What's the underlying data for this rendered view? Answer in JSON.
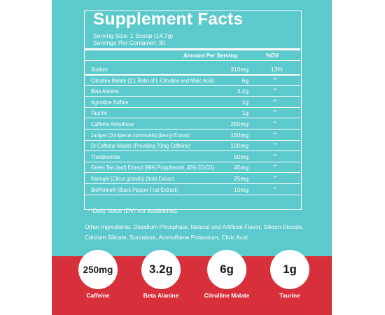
{
  "panel": {
    "title": "Supplement Facts",
    "serving_size": "Serving Size: 1 Scoop (14.7g)",
    "servings_per_container": "Servings Per Container: 30",
    "header_amount": "Amount Per Serving",
    "header_dv": "%DV",
    "rows": [
      {
        "name": "Sodium",
        "amount": "310mg",
        "dv": "13%"
      },
      {
        "name": "Citrulline Malate (2:1 Ratio of L-Citrulline and Malic Acid)",
        "amount": "6g",
        "dv": "**"
      },
      {
        "name": "Beta Alanine",
        "amount": "3.2g",
        "dv": "**"
      },
      {
        "name": "Agmatine Sulfate",
        "amount": "1g",
        "dv": "**"
      },
      {
        "name": "Taurine",
        "amount": "1g",
        "dv": "**"
      },
      {
        "name": "Caffeine Anhydrous",
        "amount": "250mg",
        "dv": "**"
      },
      {
        "name": "Juniper (Juniperus communis) (berry) Extract",
        "amount": "150mg",
        "dv": "**"
      },
      {
        "name": "Di-Caffeine Malate (Providing 70mg Caffeine)",
        "amount": "100mg",
        "dv": "**"
      },
      {
        "name": "Theobromine",
        "amount": "50mg",
        "dv": "**"
      },
      {
        "name": "Green Tea (leaf) Extract (98% Polyphenols, 45% EGCG)",
        "amount": "45mg",
        "dv": "**"
      },
      {
        "name": "Naringin (Citrus grandis) (fruit) Extract",
        "amount": "25mg",
        "dv": "**"
      },
      {
        "name": "BioPerine® (Black Pepper Fruit Extract)",
        "amount": "10mg",
        "dv": "**"
      }
    ],
    "footnote": "**Daily Value (DV) not established."
  },
  "other_ingredients": {
    "line1": "Other Ingredients: Disodium Phosphate, Natural and Artificial Flavor, Silicon Dioxide,",
    "line2": "Calcium Silicate, Sucralose, Acesulfame Potassium, Citric Acid."
  },
  "badges": [
    {
      "value": "250mg",
      "label": "Caffeine"
    },
    {
      "value": "3.2g",
      "label": "Beta Alanine"
    },
    {
      "value": "6g",
      "label": "Citrulline Malate"
    },
    {
      "value": "1g",
      "label": "Taurine"
    }
  ],
  "colors": {
    "teal": "#5cc9cc",
    "red": "#d8303a",
    "text": "#ffffff"
  }
}
